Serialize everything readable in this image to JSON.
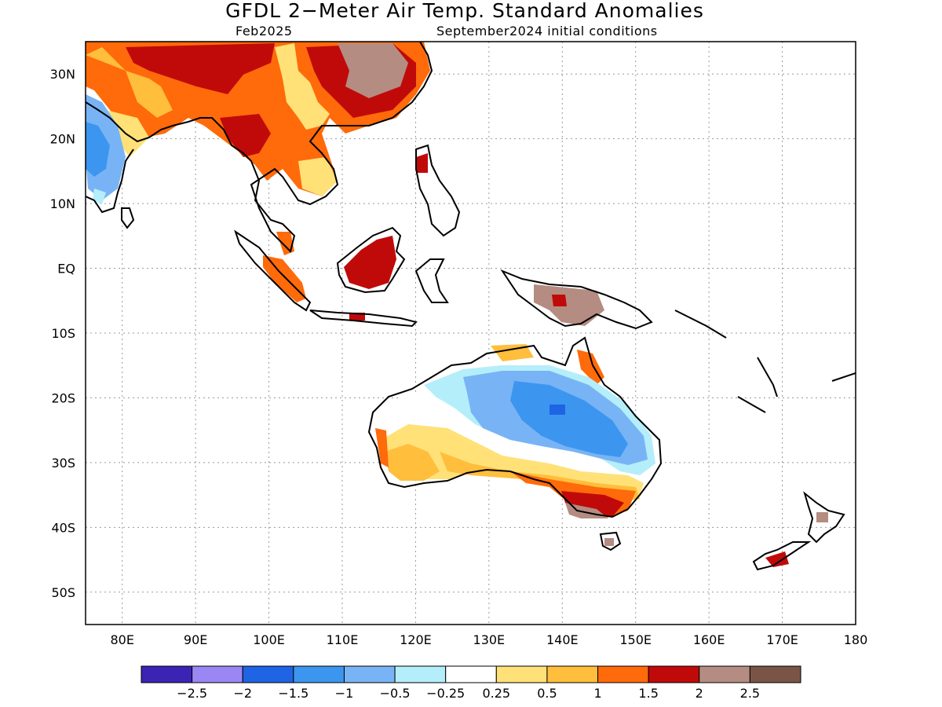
{
  "title": "GFDL 2−Meter Air Temp. Standard Anomalies",
  "valid_month": "Feb2025",
  "initial_conditions": "September2024 initial conditions",
  "map": {
    "lon_range": [
      75,
      180
    ],
    "lat_range": [
      -55,
      35
    ],
    "lon_ticks": [
      {
        "value": 80,
        "label": "80E"
      },
      {
        "value": 90,
        "label": "90E"
      },
      {
        "value": 100,
        "label": "100E"
      },
      {
        "value": 110,
        "label": "110E"
      },
      {
        "value": 120,
        "label": "120E"
      },
      {
        "value": 130,
        "label": "130E"
      },
      {
        "value": 140,
        "label": "140E"
      },
      {
        "value": 150,
        "label": "150E"
      },
      {
        "value": 160,
        "label": "160E"
      },
      {
        "value": 170,
        "label": "170E"
      },
      {
        "value": 180,
        "label": "180"
      }
    ],
    "lat_ticks": [
      {
        "value": 30,
        "label": "30N"
      },
      {
        "value": 20,
        "label": "20N"
      },
      {
        "value": 10,
        "label": "10N"
      },
      {
        "value": 0,
        "label": "EQ"
      },
      {
        "value": -10,
        "label": "10S"
      },
      {
        "value": -20,
        "label": "20S"
      },
      {
        "value": -30,
        "label": "30S"
      },
      {
        "value": -40,
        "label": "40S"
      },
      {
        "value": -50,
        "label": "50S"
      }
    ],
    "grid": "dotted"
  },
  "colorbar": {
    "colors": [
      "#3b24b4",
      "#9a87f4",
      "#1e64e4",
      "#3c96f0",
      "#78b4f5",
      "#b4eefa",
      "#ffffff",
      "#ffe178",
      "#ffbe3c",
      "#ff6a0a",
      "#c00a0a",
      "#b48c82",
      "#7a5545"
    ],
    "labels": [
      "−2.5",
      "−2",
      "−1.5",
      "−1",
      "−0.5",
      "−0.25",
      "0.25",
      "0.5",
      "1",
      "1.5",
      "2",
      "2.5"
    ]
  }
}
